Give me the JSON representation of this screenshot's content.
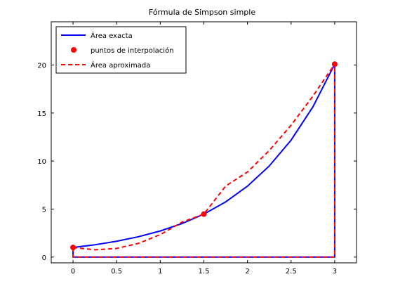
{
  "chart_data": {
    "type": "line",
    "title": "Fórmula de Simpson simple",
    "xlabel": "",
    "ylabel": "",
    "xlim": [
      -0.25,
      3.25
    ],
    "ylim": [
      -0.6,
      24.5
    ],
    "xticks": [
      0,
      0.5,
      1,
      1.5,
      2,
      2.5,
      3
    ],
    "xtick_labels": [
      "0",
      "0.5",
      "1",
      "1.5",
      "2",
      "2.5",
      "3"
    ],
    "yticks": [
      0,
      5,
      10,
      15,
      20
    ],
    "ytick_labels": [
      "0",
      "5",
      "10",
      "15",
      "20"
    ],
    "grid": false,
    "legend_position": "top-left",
    "series": [
      {
        "name": "Área exacta",
        "style": "solid",
        "color": "#0000ff",
        "x": [
          0,
          0.25,
          0.5,
          0.75,
          1,
          1.25,
          1.5,
          1.75,
          2,
          2.25,
          2.5,
          2.75,
          3
        ],
        "y": [
          1.0,
          1.28,
          1.65,
          2.12,
          2.72,
          3.49,
          4.48,
          5.75,
          7.39,
          9.49,
          12.18,
          15.64,
          20.09
        ]
      },
      {
        "name": "puntos de interpolación",
        "style": "markers",
        "color": "#ff0000",
        "x": [
          0,
          1.5,
          3
        ],
        "y": [
          1.0,
          4.48,
          20.09
        ]
      },
      {
        "name": "Área aproximada",
        "style": "dashed",
        "color": "#ff0000",
        "x": [
          0,
          0.25,
          0.5,
          0.75,
          1,
          1.25,
          1.5,
          1.75,
          2,
          2.25,
          2.5,
          2.75,
          3
        ],
        "y": [
          1.0,
          0.76,
          0.9,
          1.43,
          2.34,
          3.64,
          4.48,
          7.4,
          8.86,
          11.1,
          13.73,
          16.76,
          20.09
        ]
      }
    ]
  }
}
